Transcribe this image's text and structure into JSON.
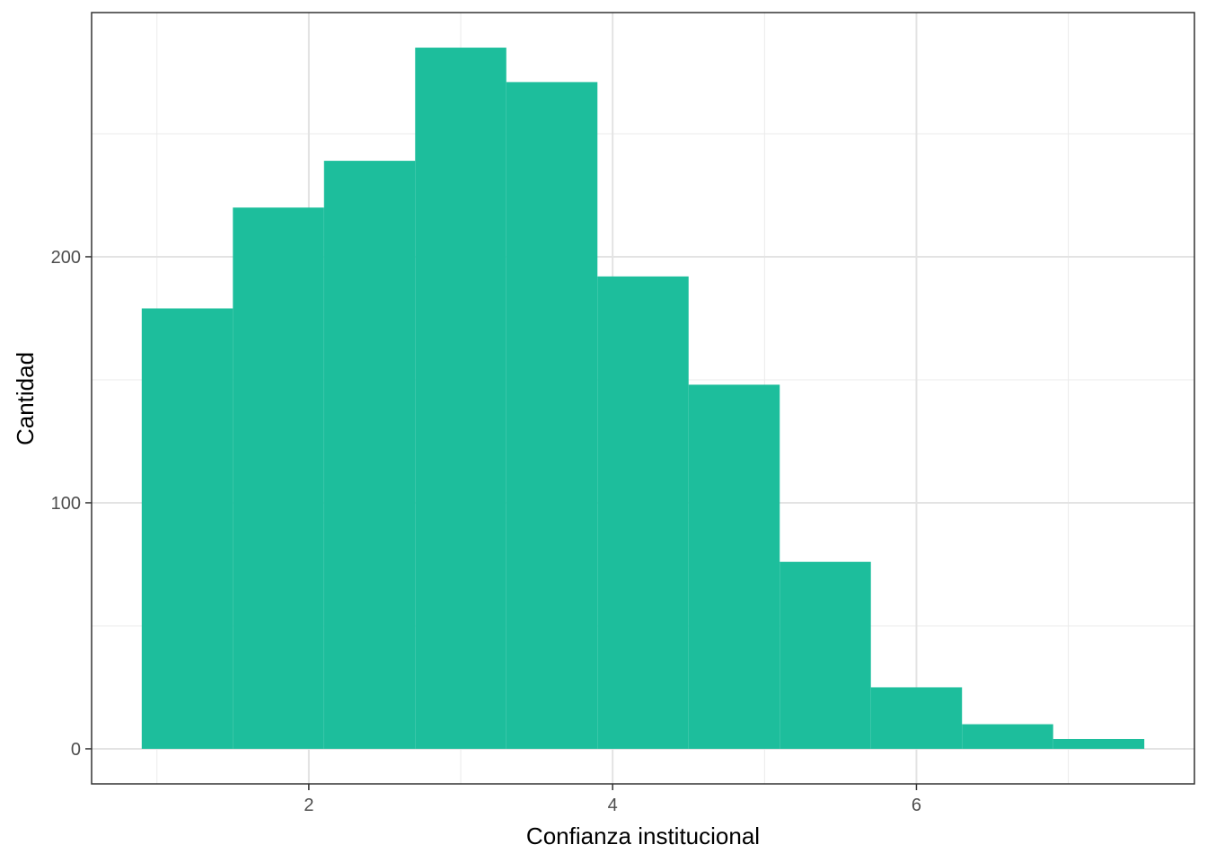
{
  "chart_data": {
    "type": "bar",
    "title": "",
    "xlabel": "Confianza institucional",
    "ylabel": "Cantidad",
    "bin_edges": [
      0.9,
      1.5,
      2.1,
      2.7,
      3.3,
      3.9,
      4.5,
      5.1,
      5.7,
      6.3,
      6.9,
      7.5
    ],
    "values": [
      179,
      220,
      239,
      285,
      271,
      192,
      148,
      76,
      25,
      10,
      4
    ],
    "xlim": [
      0.57,
      7.83
    ],
    "ylim": [
      -14.25,
      299.25
    ],
    "x_ticks": [
      2,
      4,
      6
    ],
    "y_ticks": [
      0,
      100,
      200
    ],
    "grid": true,
    "legend": "none",
    "bar_color": "#1DBE9C"
  }
}
